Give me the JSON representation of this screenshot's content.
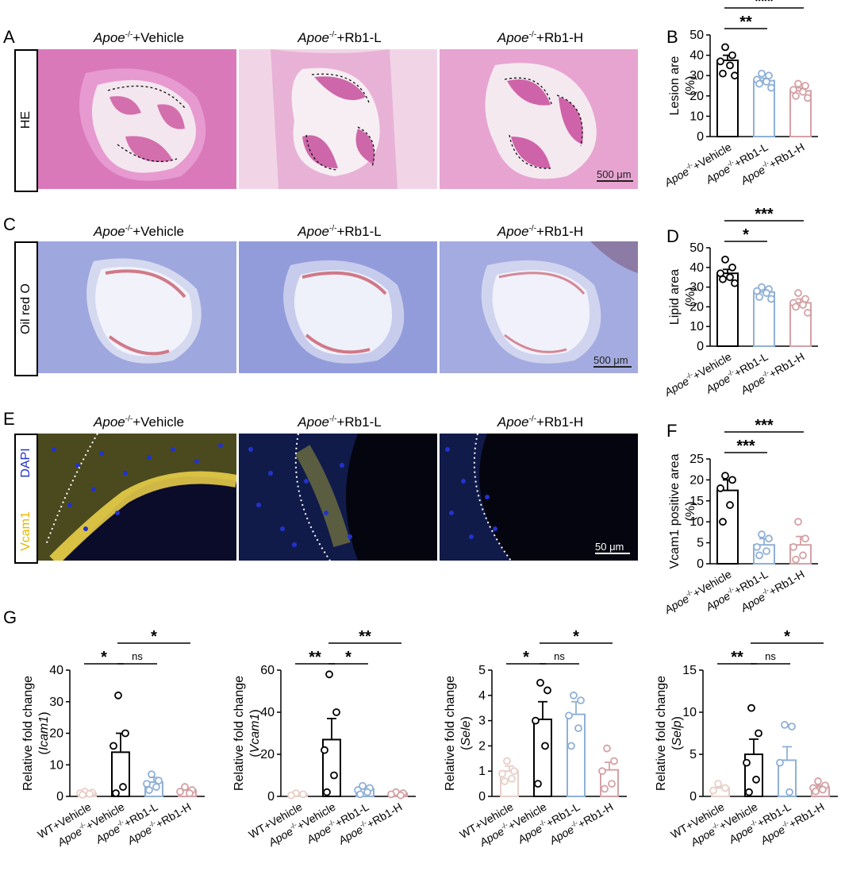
{
  "panel_letters": [
    "A",
    "B",
    "C",
    "D",
    "E",
    "F",
    "G"
  ],
  "stains": {
    "he": "HE",
    "oil": "Oil red O",
    "dapi": "DAPI",
    "vcam1": "Vcam1"
  },
  "col_titles": {
    "prefix": "Apoe",
    "sup": "-/-",
    "vehicle": "+Vehicle",
    "rb1l": "+Rb1-L",
    "rb1h": "+Rb1-H"
  },
  "scale_bars": {
    "he": "500 μm",
    "oil": "500 μm",
    "if": "50 μm"
  },
  "colors": {
    "group_black": "#000000",
    "group_blue": "#8fb0d6",
    "group_pink": "#d4a1a5",
    "group_beige": "#e8cfc7",
    "he_pink": "#d86fb0",
    "oil_blue": "#6f7bd0",
    "if_yellow": "#f2d64a",
    "if_blue": "#2233cc"
  },
  "group_labels": [
    "Apoe-/-+Vehicle",
    "Apoe-/-+Rb1-L",
    "Apoe-/-+Rb1-H"
  ],
  "group_labels_g": [
    "WT+Vehicle",
    "Apoe-/-+Vehicle",
    "Apoe-/-+Rb1-L",
    "Apoe-/-+Rb1-H"
  ],
  "chart_data": [
    {
      "id": "B",
      "type": "bar",
      "categories": [
        "Apoe-/-+Vehicle",
        "Apoe-/-+Rb1-L",
        "Apoe-/-+Rb1-H"
      ],
      "values": [
        37.5,
        27.5,
        22.5
      ],
      "errors": [
        2.5,
        1.2,
        1.5
      ],
      "points": [
        [
          44,
          40,
          37,
          35,
          31,
          30
        ],
        [
          31,
          30,
          28,
          27,
          26,
          24
        ],
        [
          26,
          25,
          23,
          22,
          20,
          19
        ]
      ],
      "ylabel_lines": [
        "Lesion are",
        "(%)"
      ],
      "yticks": [
        0,
        10,
        20,
        30,
        40,
        50
      ],
      "ylim": [
        0,
        50
      ],
      "sig": [
        {
          "from": 0,
          "to": 1,
          "label": "**"
        },
        {
          "from": 0,
          "to": 2,
          "label": "***"
        }
      ]
    },
    {
      "id": "D",
      "type": "bar",
      "categories": [
        "Apoe-/-+Vehicle",
        "Apoe-/-+Rb1-L",
        "Apoe-/-+Rb1-H"
      ],
      "values": [
        37,
        27.5,
        22
      ],
      "errors": [
        2.0,
        1.5,
        2.0
      ],
      "points": [
        [
          44,
          40,
          37,
          35,
          34,
          32
        ],
        [
          30,
          29,
          28,
          27,
          25,
          24
        ],
        [
          27,
          24,
          22,
          21,
          20,
          17
        ]
      ],
      "ylabel_lines": [
        "Lipid area",
        "(%)"
      ],
      "yticks": [
        0,
        10,
        20,
        30,
        40,
        50
      ],
      "ylim": [
        0,
        50
      ],
      "sig": [
        {
          "from": 0,
          "to": 1,
          "label": "*"
        },
        {
          "from": 0,
          "to": 2,
          "label": "***"
        }
      ]
    },
    {
      "id": "F",
      "type": "bar",
      "categories": [
        "Apoe-/-+Vehicle",
        "Apoe-/-+Rb1-L",
        "Apoe-/-+Rb1-H"
      ],
      "values": [
        17.5,
        4.5,
        4.5
      ],
      "errors": [
        2.5,
        1.5,
        2.0
      ],
      "points": [
        [
          21,
          20,
          18,
          14,
          10
        ],
        [
          7,
          6,
          4,
          3,
          2
        ],
        [
          10,
          6,
          4,
          2,
          1
        ]
      ],
      "ylabel_lines": [
        "Vcam1 positive area",
        "(%)"
      ],
      "yticks": [
        0,
        5,
        10,
        15,
        20,
        25
      ],
      "ylim": [
        0,
        25
      ],
      "sig": [
        {
          "from": 0,
          "to": 1,
          "label": "***"
        },
        {
          "from": 0,
          "to": 2,
          "label": "***"
        }
      ]
    },
    {
      "id": "G1",
      "type": "bar",
      "categories": [
        "WT+Vehicle",
        "Apoe-/-+Vehicle",
        "Apoe-/-+Rb1-L",
        "Apoe-/-+Rb1-H"
      ],
      "values": [
        1,
        14,
        4.5,
        2
      ],
      "errors": [
        0.3,
        6,
        1.5,
        0.5
      ],
      "points": [
        [
          1.5,
          1.2,
          1,
          0.8,
          0.5
        ],
        [
          32,
          20,
          16,
          3,
          1
        ],
        [
          7,
          5,
          4,
          3,
          2
        ],
        [
          3,
          2,
          1.5,
          1
        ]
      ],
      "ylabel_lines": [
        "Relative fold change",
        "(Icam1)"
      ],
      "yticks": [
        0,
        10,
        20,
        30,
        40
      ],
      "ylim": [
        0,
        40
      ],
      "sig": [
        {
          "from": 0,
          "to": 1,
          "label": "*"
        },
        {
          "from": 1,
          "to": 2,
          "label": "ns"
        },
        {
          "from": 1,
          "to": 3,
          "label": "*"
        }
      ]
    },
    {
      "id": "G2",
      "type": "bar",
      "categories": [
        "WT+Vehicle",
        "Apoe-/-+Vehicle",
        "Apoe-/-+Rb1-L",
        "Apoe-/-+Rb1-H"
      ],
      "values": [
        1,
        27,
        3.5,
        1.5
      ],
      "errors": [
        0.3,
        10,
        1,
        0.4
      ],
      "points": [
        [
          1.5,
          1,
          0.5
        ],
        [
          58,
          40,
          22,
          10,
          2
        ],
        [
          5,
          4,
          3,
          2,
          1
        ],
        [
          2,
          1.5,
          1,
          0.5
        ]
      ],
      "ylabel_lines": [
        "Relative fold change",
        "(Vcam1)"
      ],
      "yticks": [
        0,
        20,
        40,
        60
      ],
      "ylim": [
        0,
        60
      ],
      "sig": [
        {
          "from": 0,
          "to": 1,
          "label": "**"
        },
        {
          "from": 1,
          "to": 2,
          "label": "*"
        },
        {
          "from": 1,
          "to": 3,
          "label": "**"
        }
      ]
    },
    {
      "id": "G3",
      "type": "bar",
      "categories": [
        "WT+Vehicle",
        "Apoe-/-+Vehicle",
        "Apoe-/-+Rb1-L",
        "Apoe-/-+Rb1-H"
      ],
      "values": [
        1,
        3.05,
        3.25,
        1.05
      ],
      "errors": [
        0.2,
        0.7,
        0.5,
        0.3
      ],
      "points": [
        [
          1.4,
          1.0,
          0.9,
          0.7,
          0.6
        ],
        [
          4.5,
          4.2,
          3.0,
          2.0,
          0.5
        ],
        [
          4.0,
          3.8,
          3.2,
          2.7,
          2.0
        ],
        [
          1.9,
          1.4,
          1.0,
          0.5,
          0.3
        ]
      ],
      "ylabel_lines": [
        "Relative fold change",
        "(Sele)"
      ],
      "yticks": [
        0,
        1,
        2,
        3,
        4,
        5
      ],
      "ylim": [
        0,
        5
      ],
      "sig": [
        {
          "from": 0,
          "to": 1,
          "label": "*"
        },
        {
          "from": 1,
          "to": 2,
          "label": "ns"
        },
        {
          "from": 1,
          "to": 3,
          "label": "*"
        }
      ]
    },
    {
      "id": "G4",
      "type": "bar",
      "categories": [
        "WT+Vehicle",
        "Apoe-/-+Vehicle",
        "Apoe-/-+Rb1-L",
        "Apoe-/-+Rb1-H"
      ],
      "values": [
        1,
        5,
        4.3,
        1.1
      ],
      "errors": [
        0.2,
        1.8,
        1.6,
        0.2
      ],
      "points": [
        [
          1.5,
          1.0,
          0.7
        ],
        [
          10.5,
          7.5,
          4.0,
          2.0,
          0.5
        ],
        [
          8.5,
          8.3,
          4.0,
          0.5
        ],
        [
          1.8,
          1.3,
          1.0,
          0.8,
          0.6
        ]
      ],
      "ylabel_lines": [
        "Relative fold change",
        "(Selp)"
      ],
      "yticks": [
        0,
        5,
        10,
        15
      ],
      "ylim": [
        0,
        15
      ],
      "sig": [
        {
          "from": 0,
          "to": 1,
          "label": "**"
        },
        {
          "from": 1,
          "to": 2,
          "label": "ns"
        },
        {
          "from": 1,
          "to": 3,
          "label": "*"
        }
      ]
    }
  ]
}
